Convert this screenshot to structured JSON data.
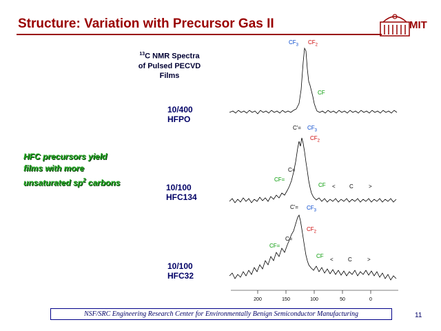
{
  "title": "Structure: Variation with Precursor Gas II",
  "logo_text": "MIT",
  "caption": {
    "sup": "13",
    "line1": "C NMR Spectra",
    "line2": "of Pulsed PECVD",
    "line3": "Films"
  },
  "samples": [
    {
      "line1": "10/400",
      "line2": "HFPO"
    },
    {
      "line1": "10/100",
      "line2": "HFC134"
    },
    {
      "line1": "10/100",
      "line2": "HFC32"
    }
  ],
  "highlight": {
    "line1": "HFC precursors yield",
    "line2": "films with more",
    "line3_pre": "unsaturated sp",
    "line3_sup": "2",
    "line3_post": " carbons"
  },
  "peaks": {
    "cf3": "CF",
    "sub3": "3",
    "cf2": "CF",
    "sub2": "2",
    "cf": "CF",
    "ceq": "C'=",
    "ceq2": "C=",
    "cfeq": "CF=",
    "c": "C",
    "lt": "<",
    "gt": ">"
  },
  "axis": {
    "ticks": [
      "200",
      "150",
      "100",
      "50",
      "0"
    ]
  },
  "footer": "NSF/SRC Engineering Research Center for Environmentally Benign Semiconductor Manufacturing",
  "page_number": "11",
  "colors": {
    "title": "#990000",
    "highlight": "#22aa22",
    "blue": "#0044cc",
    "red": "#cc0000"
  }
}
